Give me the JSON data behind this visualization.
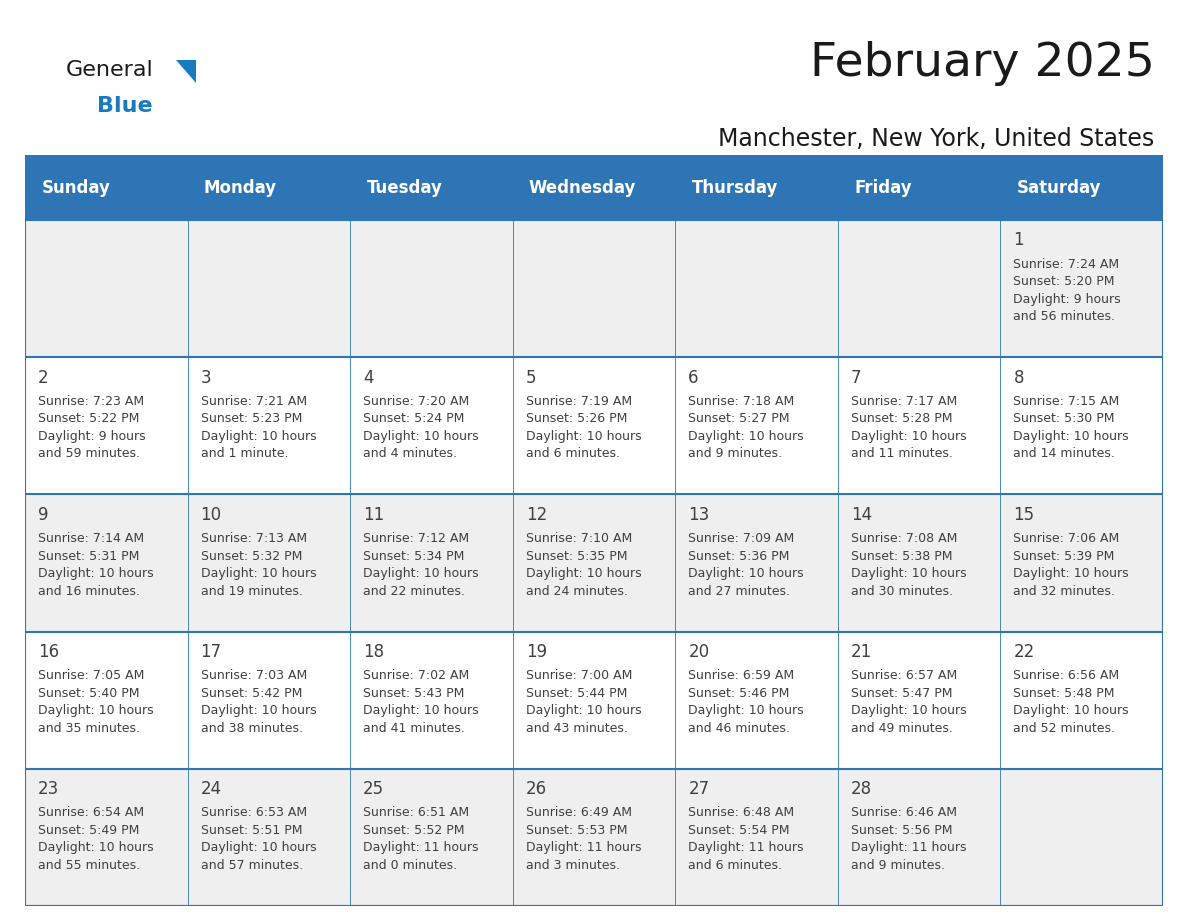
{
  "title": "February 2025",
  "subtitle": "Manchester, New York, United States",
  "header_bg": "#2E75B6",
  "header_text_color": "#FFFFFF",
  "cell_bg_odd": "#EFEFEF",
  "cell_bg_even": "#FFFFFF",
  "border_color": "#2E75B6",
  "text_color": "#404040",
  "day_headers": [
    "Sunday",
    "Monday",
    "Tuesday",
    "Wednesday",
    "Thursday",
    "Friday",
    "Saturday"
  ],
  "weeks": [
    [
      {
        "day": "",
        "info": ""
      },
      {
        "day": "",
        "info": ""
      },
      {
        "day": "",
        "info": ""
      },
      {
        "day": "",
        "info": ""
      },
      {
        "day": "",
        "info": ""
      },
      {
        "day": "",
        "info": ""
      },
      {
        "day": "1",
        "info": "Sunrise: 7:24 AM\nSunset: 5:20 PM\nDaylight: 9 hours\nand 56 minutes."
      }
    ],
    [
      {
        "day": "2",
        "info": "Sunrise: 7:23 AM\nSunset: 5:22 PM\nDaylight: 9 hours\nand 59 minutes."
      },
      {
        "day": "3",
        "info": "Sunrise: 7:21 AM\nSunset: 5:23 PM\nDaylight: 10 hours\nand 1 minute."
      },
      {
        "day": "4",
        "info": "Sunrise: 7:20 AM\nSunset: 5:24 PM\nDaylight: 10 hours\nand 4 minutes."
      },
      {
        "day": "5",
        "info": "Sunrise: 7:19 AM\nSunset: 5:26 PM\nDaylight: 10 hours\nand 6 minutes."
      },
      {
        "day": "6",
        "info": "Sunrise: 7:18 AM\nSunset: 5:27 PM\nDaylight: 10 hours\nand 9 minutes."
      },
      {
        "day": "7",
        "info": "Sunrise: 7:17 AM\nSunset: 5:28 PM\nDaylight: 10 hours\nand 11 minutes."
      },
      {
        "day": "8",
        "info": "Sunrise: 7:15 AM\nSunset: 5:30 PM\nDaylight: 10 hours\nand 14 minutes."
      }
    ],
    [
      {
        "day": "9",
        "info": "Sunrise: 7:14 AM\nSunset: 5:31 PM\nDaylight: 10 hours\nand 16 minutes."
      },
      {
        "day": "10",
        "info": "Sunrise: 7:13 AM\nSunset: 5:32 PM\nDaylight: 10 hours\nand 19 minutes."
      },
      {
        "day": "11",
        "info": "Sunrise: 7:12 AM\nSunset: 5:34 PM\nDaylight: 10 hours\nand 22 minutes."
      },
      {
        "day": "12",
        "info": "Sunrise: 7:10 AM\nSunset: 5:35 PM\nDaylight: 10 hours\nand 24 minutes."
      },
      {
        "day": "13",
        "info": "Sunrise: 7:09 AM\nSunset: 5:36 PM\nDaylight: 10 hours\nand 27 minutes."
      },
      {
        "day": "14",
        "info": "Sunrise: 7:08 AM\nSunset: 5:38 PM\nDaylight: 10 hours\nand 30 minutes."
      },
      {
        "day": "15",
        "info": "Sunrise: 7:06 AM\nSunset: 5:39 PM\nDaylight: 10 hours\nand 32 minutes."
      }
    ],
    [
      {
        "day": "16",
        "info": "Sunrise: 7:05 AM\nSunset: 5:40 PM\nDaylight: 10 hours\nand 35 minutes."
      },
      {
        "day": "17",
        "info": "Sunrise: 7:03 AM\nSunset: 5:42 PM\nDaylight: 10 hours\nand 38 minutes."
      },
      {
        "day": "18",
        "info": "Sunrise: 7:02 AM\nSunset: 5:43 PM\nDaylight: 10 hours\nand 41 minutes."
      },
      {
        "day": "19",
        "info": "Sunrise: 7:00 AM\nSunset: 5:44 PM\nDaylight: 10 hours\nand 43 minutes."
      },
      {
        "day": "20",
        "info": "Sunrise: 6:59 AM\nSunset: 5:46 PM\nDaylight: 10 hours\nand 46 minutes."
      },
      {
        "day": "21",
        "info": "Sunrise: 6:57 AM\nSunset: 5:47 PM\nDaylight: 10 hours\nand 49 minutes."
      },
      {
        "day": "22",
        "info": "Sunrise: 6:56 AM\nSunset: 5:48 PM\nDaylight: 10 hours\nand 52 minutes."
      }
    ],
    [
      {
        "day": "23",
        "info": "Sunrise: 6:54 AM\nSunset: 5:49 PM\nDaylight: 10 hours\nand 55 minutes."
      },
      {
        "day": "24",
        "info": "Sunrise: 6:53 AM\nSunset: 5:51 PM\nDaylight: 10 hours\nand 57 minutes."
      },
      {
        "day": "25",
        "info": "Sunrise: 6:51 AM\nSunset: 5:52 PM\nDaylight: 11 hours\nand 0 minutes."
      },
      {
        "day": "26",
        "info": "Sunrise: 6:49 AM\nSunset: 5:53 PM\nDaylight: 11 hours\nand 3 minutes."
      },
      {
        "day": "27",
        "info": "Sunrise: 6:48 AM\nSunset: 5:54 PM\nDaylight: 11 hours\nand 6 minutes."
      },
      {
        "day": "28",
        "info": "Sunrise: 6:46 AM\nSunset: 5:56 PM\nDaylight: 11 hours\nand 9 minutes."
      },
      {
        "day": "",
        "info": ""
      }
    ]
  ],
  "logo_color_general": "#1a1a1a",
  "logo_color_blue": "#1a7abf",
  "logo_triangle_color": "#1a7abf",
  "title_fontsize": 34,
  "subtitle_fontsize": 17,
  "header_fontsize": 12,
  "day_num_fontsize": 12,
  "cell_text_fontsize": 9
}
